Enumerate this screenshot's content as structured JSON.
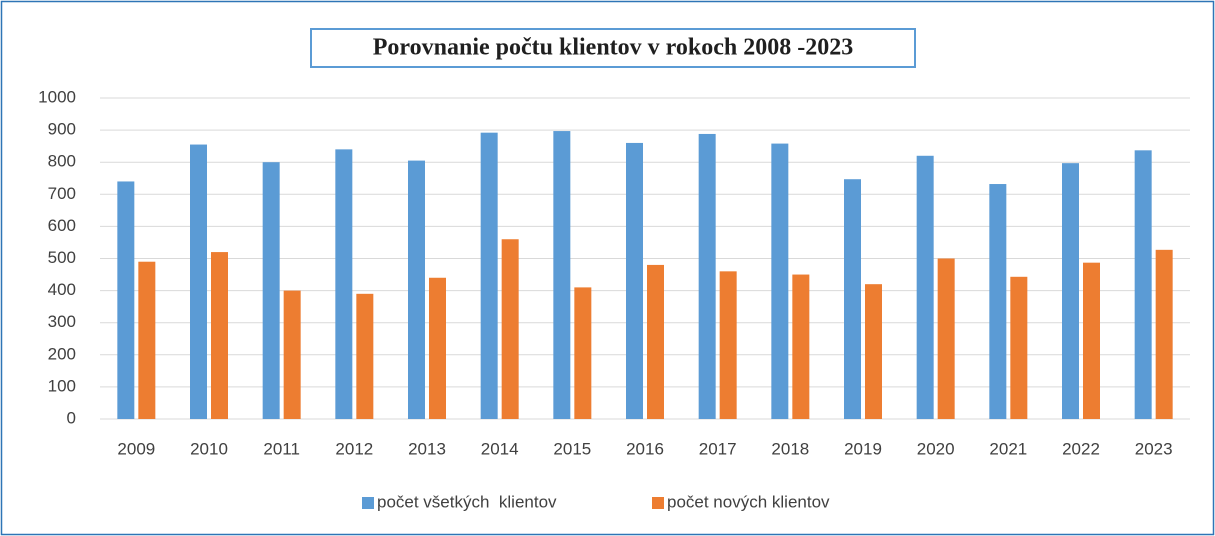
{
  "chart_data": {
    "type": "bar",
    "title": "Porovnanie počtu klientov v rokoch 2008 -2023",
    "categories": [
      "2009",
      "2010",
      "2011",
      "2012",
      "2013",
      "2014",
      "2015",
      "2016",
      "2017",
      "2018",
      "2019",
      "2020",
      "2021",
      "2022",
      "2023"
    ],
    "series": [
      {
        "name": "počet všetkých  klientov",
        "color": "#5b9bd5",
        "values": [
          740,
          855,
          800,
          840,
          805,
          892,
          897,
          860,
          888,
          858,
          747,
          820,
          732,
          797,
          837
        ]
      },
      {
        "name": "počet nových klientov",
        "color": "#ed7d31",
        "values": [
          490,
          520,
          400,
          390,
          440,
          560,
          410,
          480,
          460,
          450,
          420,
          500,
          443,
          487,
          527
        ]
      }
    ],
    "ylim": [
      0,
      1000
    ],
    "yticks": [
      0,
      100,
      200,
      300,
      400,
      500,
      600,
      700,
      800,
      900,
      1000
    ],
    "grid": true,
    "legend": "bottom"
  }
}
